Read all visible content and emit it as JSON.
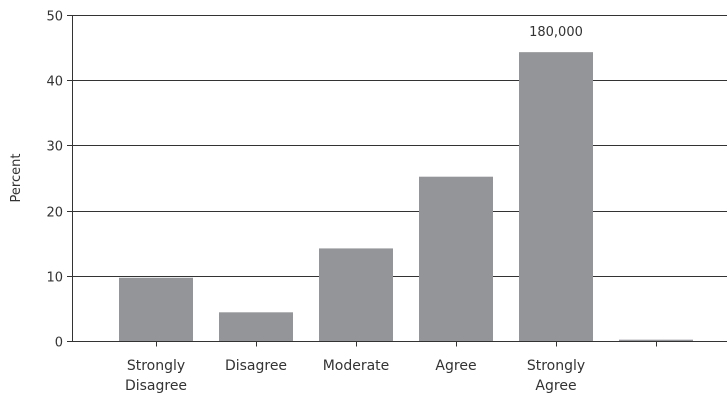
{
  "chart_data": {
    "type": "bar",
    "categories": [
      [
        "Strongly",
        "Disagree"
      ],
      [
        "Disagree"
      ],
      [
        "Moderate"
      ],
      [
        "Agree"
      ],
      [
        "Strongly",
        "Agree"
      ],
      []
    ],
    "values": [
      9.7,
      4.4,
      14.2,
      25.2,
      44.3,
      0.2
    ],
    "ylabel": "Percent",
    "ylim": [
      0,
      50
    ],
    "yticks": [
      0,
      10,
      20,
      30,
      40,
      50
    ],
    "ytick_labels": [
      "0",
      "10",
      "20",
      "30",
      "40",
      "50"
    ],
    "grid": "horizontal",
    "annotations": [
      {
        "category_index": 4,
        "text": "180,000"
      }
    ],
    "colors": {
      "bar": "#939598",
      "grid": "#333333",
      "text": "#333333"
    }
  }
}
